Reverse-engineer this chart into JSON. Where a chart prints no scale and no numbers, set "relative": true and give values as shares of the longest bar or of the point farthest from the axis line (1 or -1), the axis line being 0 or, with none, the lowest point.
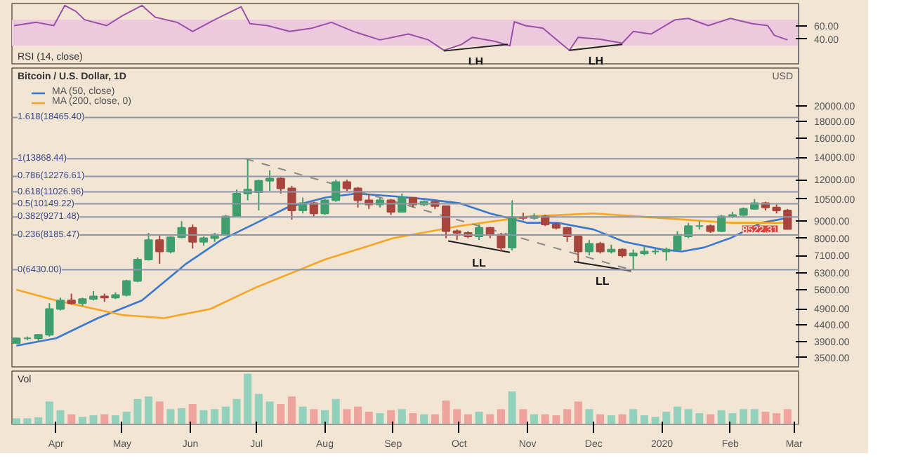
{
  "chart_data": [
    {
      "type": "line",
      "title": "RSI (14, close)",
      "xlim": [
        "2019-03-12",
        "2020-03-03"
      ],
      "ylim": [
        0,
        95
      ],
      "yticks": [
        {
          "value": 40,
          "label": "40.00"
        },
        {
          "value": 60,
          "label": "60.00"
        }
      ],
      "tick_labels": "y",
      "grid": false,
      "bands": [
        {
          "axis": "y",
          "from": 30,
          "to": 70,
          "color": "#ecc9dc"
        }
      ],
      "series": [
        {
          "color": "#9b4fa8",
          "x": [
            "2019-03-13",
            "2019-03-23",
            "2019-03-31",
            "2019-04-05",
            "2019-04-10",
            "2019-04-14",
            "2019-04-24",
            "2019-05-01",
            "2019-05-10",
            "2019-05-16",
            "2019-05-26",
            "2019-06-02",
            "2019-06-12",
            "2019-06-24",
            "2019-06-28",
            "2019-07-06",
            "2019-07-16",
            "2019-07-26",
            "2019-08-04",
            "2019-08-14",
            "2019-08-26",
            "2019-09-08",
            "2019-09-17",
            "2019-09-24",
            "2019-10-02",
            "2019-10-07",
            "2019-10-17",
            "2019-10-24",
            "2019-10-26",
            "2019-10-31",
            "2019-11-08",
            "2019-11-15",
            "2019-11-20",
            "2019-11-24",
            "2019-12-04",
            "2019-12-14",
            "2019-12-19",
            "2019-12-27",
            "2020-01-07",
            "2020-01-13",
            "2020-01-22",
            "2020-02-01",
            "2020-02-11",
            "2020-02-18",
            "2020-02-21",
            "2020-02-27"
          ],
          "values": [
            61,
            66,
            61,
            92,
            83,
            70,
            61,
            76,
            92,
            74,
            66,
            52,
            70,
            90,
            64,
            61,
            52,
            57,
            66,
            52,
            39,
            48,
            39,
            23,
            32,
            43,
            37,
            30,
            67,
            61,
            57,
            37,
            23,
            43,
            40,
            34,
            52,
            48,
            70,
            72,
            61,
            72,
            64,
            61,
            46,
            39
          ]
        },
        {
          "type": "line",
          "color": "#222222",
          "x": [
            "2019-09-24",
            "2019-10-23"
          ],
          "values": [
            22,
            32
          ]
        },
        {
          "type": "line",
          "color": "#222222",
          "x": [
            "2019-11-20",
            "2019-12-14"
          ],
          "values": [
            23,
            32
          ]
        }
      ],
      "annotations": [
        "LH",
        "LH"
      ]
    },
    {
      "type": "candlestick",
      "title": "Bitcoin / U.S. Dollar, 1D",
      "ylabel": "USD",
      "log": true,
      "grid": false,
      "legend": "top left",
      "tick_labels": "y",
      "xlim": [
        "2019-03-12",
        "2020-03-03"
      ],
      "ylim": [
        3250,
        26000
      ],
      "yticks": [
        {
          "value": 3500,
          "label": "3500.00"
        },
        {
          "value": 3900,
          "label": "3900.00"
        },
        {
          "value": 4400,
          "label": "4400.00"
        },
        {
          "value": 4900,
          "label": "4900.00"
        },
        {
          "value": 5600,
          "label": "5600.00"
        },
        {
          "value": 6300,
          "label": "6300.00"
        },
        {
          "value": 7100,
          "label": "7100.00"
        },
        {
          "value": 8000,
          "label": "8000.00"
        },
        {
          "value": 9000,
          "label": "9000.00"
        },
        {
          "value": 10500,
          "label": "10500.00"
        },
        {
          "value": 12000,
          "label": "12000.00"
        },
        {
          "value": 14000,
          "label": "14000.00"
        },
        {
          "value": 16000,
          "label": "16000.00"
        },
        {
          "value": 18000,
          "label": "18000.00"
        },
        {
          "value": 20000,
          "label": "20000.00"
        }
      ],
      "x": [
        "2019-03-14",
        "2019-03-19",
        "2019-03-24",
        "2019-03-29",
        "2019-04-03",
        "2019-04-08",
        "2019-04-13",
        "2019-04-18",
        "2019-04-23",
        "2019-04-28",
        "2019-05-03",
        "2019-05-08",
        "2019-05-13",
        "2019-05-18",
        "2019-05-23",
        "2019-05-28",
        "2019-06-02",
        "2019-06-07",
        "2019-06-12",
        "2019-06-17",
        "2019-06-22",
        "2019-06-27",
        "2019-07-02",
        "2019-07-07",
        "2019-07-12",
        "2019-07-17",
        "2019-07-22",
        "2019-07-27",
        "2019-08-01",
        "2019-08-06",
        "2019-08-11",
        "2019-08-16",
        "2019-08-21",
        "2019-08-26",
        "2019-08-31",
        "2019-09-05",
        "2019-09-10",
        "2019-09-15",
        "2019-09-20",
        "2019-09-25",
        "2019-09-30",
        "2019-10-05",
        "2019-10-10",
        "2019-10-15",
        "2019-10-20",
        "2019-10-25",
        "2019-10-30",
        "2019-11-04",
        "2019-11-09",
        "2019-11-14",
        "2019-11-19",
        "2019-11-24",
        "2019-11-29",
        "2019-12-04",
        "2019-12-09",
        "2019-12-14",
        "2019-12-19",
        "2019-12-24",
        "2019-12-29",
        "2020-01-03",
        "2020-01-08",
        "2020-01-13",
        "2020-01-18",
        "2020-01-23",
        "2020-01-28",
        "2020-02-02",
        "2020-02-07",
        "2020-02-12",
        "2020-02-17",
        "2020-02-22",
        "2020-02-27"
      ],
      "ohlc": [
        [
          3870,
          4020,
          3850,
          4000
        ],
        [
          4000,
          4050,
          3950,
          4000
        ],
        [
          4000,
          4120,
          3900,
          4100
        ],
        [
          4100,
          5100,
          4050,
          4900
        ],
        [
          4900,
          5300,
          4850,
          5200
        ],
        [
          5200,
          5450,
          5050,
          5100
        ],
        [
          5100,
          5300,
          5000,
          5250
        ],
        [
          5250,
          5550,
          5200,
          5350
        ],
        [
          5350,
          5450,
          5150,
          5300
        ],
        [
          5300,
          5500,
          5250,
          5400
        ],
        [
          5400,
          6000,
          5350,
          5950
        ],
        [
          5950,
          7000,
          5900,
          6900
        ],
        [
          6900,
          8300,
          6850,
          7900
        ],
        [
          7900,
          8200,
          6700,
          7300
        ],
        [
          7300,
          8100,
          7200,
          8050
        ],
        [
          8050,
          9000,
          8000,
          8600
        ],
        [
          8600,
          8800,
          7450,
          7800
        ],
        [
          7800,
          8100,
          7600,
          8000
        ],
        [
          8000,
          8300,
          7800,
          8200
        ],
        [
          8200,
          9400,
          8150,
          9300
        ],
        [
          9300,
          11200,
          9250,
          10900
        ],
        [
          10900,
          13868.44,
          10400,
          11200
        ],
        [
          11000,
          12000,
          9700,
          11900
        ],
        [
          11900,
          12800,
          11100,
          12100
        ],
        [
          12100,
          12200,
          10900,
          11300
        ],
        [
          11300,
          11500,
          9100,
          9700
        ],
        [
          9700,
          10600,
          9500,
          10200
        ],
        [
          10200,
          10300,
          9300,
          9500
        ],
        [
          9500,
          10500,
          9400,
          10400
        ],
        [
          10400,
          12000,
          10300,
          11800
        ],
        [
          11800,
          12000,
          11100,
          11300
        ],
        [
          11300,
          11400,
          9900,
          10400
        ],
        [
          10400,
          10900,
          9800,
          10100
        ],
        [
          10100,
          10600,
          9900,
          10400
        ],
        [
          10400,
          10500,
          9400,
          9600
        ],
        [
          9600,
          10900,
          9600,
          10600
        ],
        [
          10600,
          10600,
          9900,
          10100
        ],
        [
          10100,
          10400,
          10000,
          10300
        ],
        [
          10300,
          10350,
          9800,
          10000
        ],
        [
          10000,
          10000,
          8000,
          8400
        ],
        [
          8400,
          8500,
          7900,
          8300
        ],
        [
          8300,
          8400,
          8000,
          8100
        ],
        [
          8100,
          8800,
          7900,
          8600
        ],
        [
          8600,
          8650,
          8000,
          8200
        ],
        [
          8200,
          8300,
          7300,
          7500
        ],
        [
          7500,
          10400,
          7350,
          9250
        ],
        [
          9250,
          9550,
          9050,
          9200
        ],
        [
          9200,
          9500,
          9100,
          9300
        ],
        [
          9300,
          9400,
          8700,
          8800
        ],
        [
          8800,
          8900,
          8500,
          8600
        ],
        [
          8600,
          8650,
          7800,
          8100
        ],
        [
          8100,
          8100,
          6800,
          7300
        ],
        [
          7300,
          7900,
          7100,
          7700
        ],
        [
          7700,
          7800,
          7200,
          7300
        ],
        [
          7300,
          7650,
          7200,
          7400
        ],
        [
          7400,
          7450,
          7000,
          7100
        ],
        [
          7100,
          7400,
          6430,
          7200
        ],
        [
          7200,
          7550,
          7100,
          7300
        ],
        [
          7300,
          7450,
          7150,
          7300
        ],
        [
          7300,
          7500,
          6850,
          7400
        ],
        [
          7400,
          8400,
          7350,
          8100
        ],
        [
          8100,
          8900,
          8000,
          8700
        ],
        [
          8700,
          9000,
          8500,
          8700
        ],
        [
          8700,
          8800,
          8300,
          8400
        ],
        [
          8400,
          9400,
          8350,
          9300
        ],
        [
          9300,
          9600,
          9200,
          9400
        ],
        [
          9400,
          9900,
          9300,
          9800
        ],
        [
          9800,
          10500,
          9750,
          10200
        ],
        [
          10200,
          10300,
          9700,
          9900
        ],
        [
          9900,
          10100,
          9500,
          9700
        ],
        [
          9700,
          9800,
          8500,
          8522.31
        ]
      ],
      "colors": [
        "#3f9e6e",
        "#3f9e6e",
        "#3f9e6e",
        "#3f9e6e",
        "#3f9e6e",
        "#a8453c",
        "#3f9e6e",
        "#3f9e6e",
        "#a8453c",
        "#3f9e6e",
        "#3f9e6e",
        "#3f9e6e",
        "#3f9e6e",
        "#a8453c",
        "#3f9e6e",
        "#3f9e6e",
        "#a8453c",
        "#3f9e6e",
        "#3f9e6e",
        "#3f9e6e",
        "#3f9e6e",
        "#3f9e6e",
        "#3f9e6e",
        "#3f9e6e",
        "#a8453c",
        "#a8453c",
        "#3f9e6e",
        "#a8453c",
        "#3f9e6e",
        "#3f9e6e",
        "#a8453c",
        "#a8453c",
        "#a8453c",
        "#3f9e6e",
        "#a8453c",
        "#3f9e6e",
        "#a8453c",
        "#3f9e6e",
        "#a8453c",
        "#a8453c",
        "#a8453c",
        "#a8453c",
        "#3f9e6e",
        "#a8453c",
        "#a8453c",
        "#3f9e6e",
        "#a8453c",
        "#3f9e6e",
        "#a8453c",
        "#a8453c",
        "#a8453c",
        "#a8453c",
        "#3f9e6e",
        "#a8453c",
        "#3f9e6e",
        "#a8453c",
        "#3f9e6e",
        "#3f9e6e",
        "#3f9e6e",
        "#3f9e6e",
        "#3f9e6e",
        "#3f9e6e",
        "#3f9e6e",
        "#a8453c",
        "#3f9e6e",
        "#3f9e6e",
        "#3f9e6e",
        "#3f9e6e",
        "#a8453c",
        "#a8453c",
        "#a8453c"
      ],
      "series": [
        {
          "type": "line",
          "name": "MA (50, close)",
          "color": "#3b79cf",
          "x": [
            "2019-03-14",
            "2019-04-01",
            "2019-04-20",
            "2019-05-10",
            "2019-05-30",
            "2019-06-15",
            "2019-07-01",
            "2019-07-15",
            "2019-08-01",
            "2019-08-15",
            "2019-09-01",
            "2019-09-15",
            "2019-10-01",
            "2019-10-15",
            "2019-11-01",
            "2019-11-15",
            "2019-12-01",
            "2019-12-15",
            "2020-01-01",
            "2020-01-10",
            "2020-01-20",
            "2020-02-01",
            "2020-02-15",
            "2020-02-27"
          ],
          "values": [
            3800,
            4000,
            4600,
            5200,
            6700,
            7900,
            8900,
            9900,
            10600,
            10900,
            10700,
            10500,
            10200,
            9500,
            8900,
            8900,
            8500,
            7800,
            7400,
            7300,
            7500,
            8000,
            8900,
            9200
          ]
        },
        {
          "type": "line",
          "name": "MA (200, close, 0)",
          "color": "#f5a623",
          "x": [
            "2019-03-14",
            "2019-04-01",
            "2019-05-01",
            "2019-05-20",
            "2019-06-10",
            "2019-07-01",
            "2019-08-01",
            "2019-09-01",
            "2019-10-01",
            "2019-11-01",
            "2019-12-01",
            "2020-01-01",
            "2020-02-01",
            "2020-02-27"
          ],
          "values": [
            5600,
            5200,
            4700,
            4600,
            4900,
            5700,
            6900,
            8000,
            8700,
            9300,
            9500,
            9200,
            8900,
            8900
          ]
        },
        {
          "type": "line",
          "color": "#8a8a8a",
          "line_style": "dashed",
          "x": [
            "2019-06-26",
            "2019-12-18"
          ],
          "values": [
            13868.44,
            6430
          ]
        },
        {
          "type": "line",
          "color": "#222222",
          "x": [
            "2019-09-26",
            "2019-10-24"
          ],
          "values": [
            7850,
            7250
          ]
        },
        {
          "type": "line",
          "color": "#222222",
          "x": [
            "2019-11-22",
            "2019-12-18"
          ],
          "values": [
            6800,
            6380
          ]
        }
      ],
      "ref_lines": [
        {
          "axis": "y",
          "value": 18465.4,
          "label": "1.618(18465.40)",
          "color": "#8c96a8"
        },
        {
          "axis": "y",
          "value": 13868.44,
          "label": "1(13868.44)",
          "color": "#8c96a8"
        },
        {
          "axis": "y",
          "value": 12276.61,
          "label": "0.786(12276.61)",
          "color": "#8c96a8"
        },
        {
          "axis": "y",
          "value": 11026.96,
          "label": "0.618(11026.96)",
          "color": "#8c96a8"
        },
        {
          "axis": "y",
          "value": 10149.22,
          "label": "0.5(10149.22)",
          "color": "#8c96a8"
        },
        {
          "axis": "y",
          "value": 9271.48,
          "label": "0.382(9271.48)",
          "color": "#8c96a8"
        },
        {
          "axis": "y",
          "value": 8185.47,
          "label": "0.236(8185.47)",
          "color": "#8c96a8"
        },
        {
          "axis": "y",
          "value": 6430.0,
          "label": "0(6430.00)",
          "color": "#8c96a8"
        }
      ],
      "annotations": [
        "LL",
        "LL",
        {
          "text": "8522.31",
          "x": "2020-02-27",
          "y": 8522.31
        }
      ]
    },
    {
      "type": "bar",
      "title": "Vol",
      "relative": true,
      "tick_labels": "x",
      "grid": false,
      "xlim": [
        "2019-03-12",
        "2020-03-03"
      ],
      "xticks": [
        {
          "value": "2019-04-01",
          "label": "Apr"
        },
        {
          "value": "2019-05-01",
          "label": "May"
        },
        {
          "value": "2019-06-01",
          "label": "Jun"
        },
        {
          "value": "2019-07-01",
          "label": "Jul"
        },
        {
          "value": "2019-08-01",
          "label": "Aug"
        },
        {
          "value": "2019-09-01",
          "label": "Sep"
        },
        {
          "value": "2019-10-01",
          "label": "Oct"
        },
        {
          "value": "2019-11-01",
          "label": "Nov"
        },
        {
          "value": "2019-12-01",
          "label": "Dec"
        },
        {
          "value": "2020-01-01",
          "label": "2020"
        },
        {
          "value": "2020-02-01",
          "label": "Feb"
        },
        {
          "value": "2020-03-01",
          "label": "Mar"
        }
      ],
      "x": [
        "2019-03-14",
        "2019-03-19",
        "2019-03-24",
        "2019-03-29",
        "2019-04-03",
        "2019-04-08",
        "2019-04-13",
        "2019-04-18",
        "2019-04-23",
        "2019-04-28",
        "2019-05-03",
        "2019-05-08",
        "2019-05-13",
        "2019-05-18",
        "2019-05-23",
        "2019-05-28",
        "2019-06-02",
        "2019-06-07",
        "2019-06-12",
        "2019-06-17",
        "2019-06-22",
        "2019-06-27",
        "2019-07-02",
        "2019-07-07",
        "2019-07-12",
        "2019-07-17",
        "2019-07-22",
        "2019-07-27",
        "2019-08-01",
        "2019-08-06",
        "2019-08-11",
        "2019-08-16",
        "2019-08-21",
        "2019-08-26",
        "2019-08-31",
        "2019-09-05",
        "2019-09-10",
        "2019-09-15",
        "2019-09-20",
        "2019-09-25",
        "2019-09-30",
        "2019-10-05",
        "2019-10-10",
        "2019-10-15",
        "2019-10-20",
        "2019-10-25",
        "2019-10-30",
        "2019-11-04",
        "2019-11-09",
        "2019-11-14",
        "2019-11-19",
        "2019-11-24",
        "2019-11-29",
        "2019-12-04",
        "2019-12-09",
        "2019-12-14",
        "2019-12-19",
        "2019-12-24",
        "2019-12-29",
        "2020-01-03",
        "2020-01-08",
        "2020-01-13",
        "2020-01-18",
        "2020-01-23",
        "2020-01-28",
        "2020-02-02",
        "2020-02-07",
        "2020-02-12",
        "2020-02-17",
        "2020-02-22",
        "2020-02-27"
      ],
      "values": [
        0.12,
        0.12,
        0.14,
        0.45,
        0.28,
        0.2,
        0.15,
        0.18,
        0.2,
        0.18,
        0.25,
        0.5,
        0.55,
        0.45,
        0.3,
        0.32,
        0.4,
        0.28,
        0.3,
        0.35,
        0.5,
        1,
        0.6,
        0.45,
        0.4,
        0.55,
        0.35,
        0.3,
        0.28,
        0.5,
        0.3,
        0.35,
        0.25,
        0.22,
        0.28,
        0.3,
        0.22,
        0.2,
        0.2,
        0.47,
        0.3,
        0.2,
        0.25,
        0.2,
        0.3,
        0.65,
        0.3,
        0.2,
        0.2,
        0.18,
        0.3,
        0.45,
        0.3,
        0.2,
        0.18,
        0.2,
        0.3,
        0.18,
        0.15,
        0.25,
        0.35,
        0.3,
        0.22,
        0.2,
        0.28,
        0.22,
        0.3,
        0.3,
        0.25,
        0.22,
        0.3
      ],
      "colors": [
        "#92d1bb",
        "#92d1bb",
        "#92d1bb",
        "#92d1bb",
        "#92d1bb",
        "#eea49c",
        "#92d1bb",
        "#92d1bb",
        "#eea49c",
        "#92d1bb",
        "#92d1bb",
        "#92d1bb",
        "#92d1bb",
        "#eea49c",
        "#92d1bb",
        "#92d1bb",
        "#eea49c",
        "#92d1bb",
        "#92d1bb",
        "#92d1bb",
        "#92d1bb",
        "#92d1bb",
        "#92d1bb",
        "#92d1bb",
        "#eea49c",
        "#eea49c",
        "#92d1bb",
        "#eea49c",
        "#92d1bb",
        "#92d1bb",
        "#eea49c",
        "#eea49c",
        "#eea49c",
        "#92d1bb",
        "#eea49c",
        "#92d1bb",
        "#eea49c",
        "#92d1bb",
        "#eea49c",
        "#eea49c",
        "#eea49c",
        "#eea49c",
        "#92d1bb",
        "#eea49c",
        "#eea49c",
        "#92d1bb",
        "#eea49c",
        "#92d1bb",
        "#eea49c",
        "#eea49c",
        "#eea49c",
        "#eea49c",
        "#92d1bb",
        "#eea49c",
        "#92d1bb",
        "#eea49c",
        "#92d1bb",
        "#92d1bb",
        "#92d1bb",
        "#92d1bb",
        "#92d1bb",
        "#92d1bb",
        "#92d1bb",
        "#eea49c",
        "#92d1bb",
        "#92d1bb",
        "#92d1bb",
        "#92d1bb",
        "#eea49c",
        "#eea49c",
        "#eea49c"
      ]
    }
  ]
}
